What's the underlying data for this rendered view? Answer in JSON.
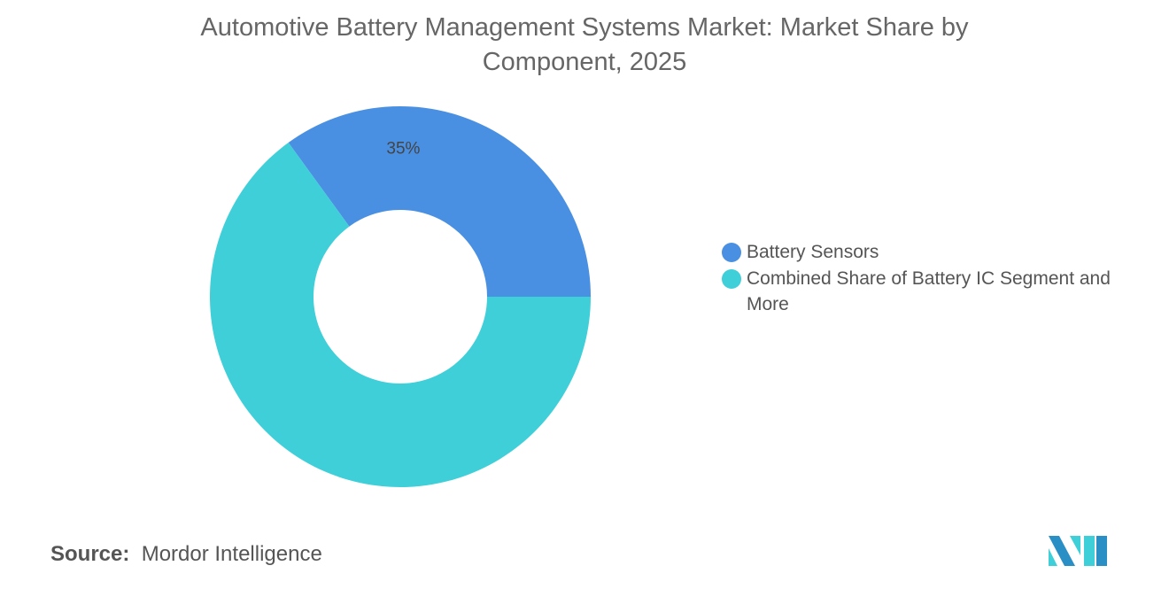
{
  "chart_data": {
    "type": "pie",
    "donut": true,
    "title": "Automotive Battery Management Systems Market: Market Share by Component, 2025",
    "categories": [
      "Battery Sensors",
      "Combined Share of Battery IC Segment and More"
    ],
    "values": [
      35,
      65
    ],
    "data_labels": [
      "35%",
      ""
    ],
    "colors": [
      "#4a90e2",
      "#3ecfd9"
    ],
    "legend_position": "right"
  },
  "source": {
    "label": "Source:",
    "value": "Mordor Intelligence"
  },
  "logo": {
    "text": "Mordor Intelligence"
  }
}
